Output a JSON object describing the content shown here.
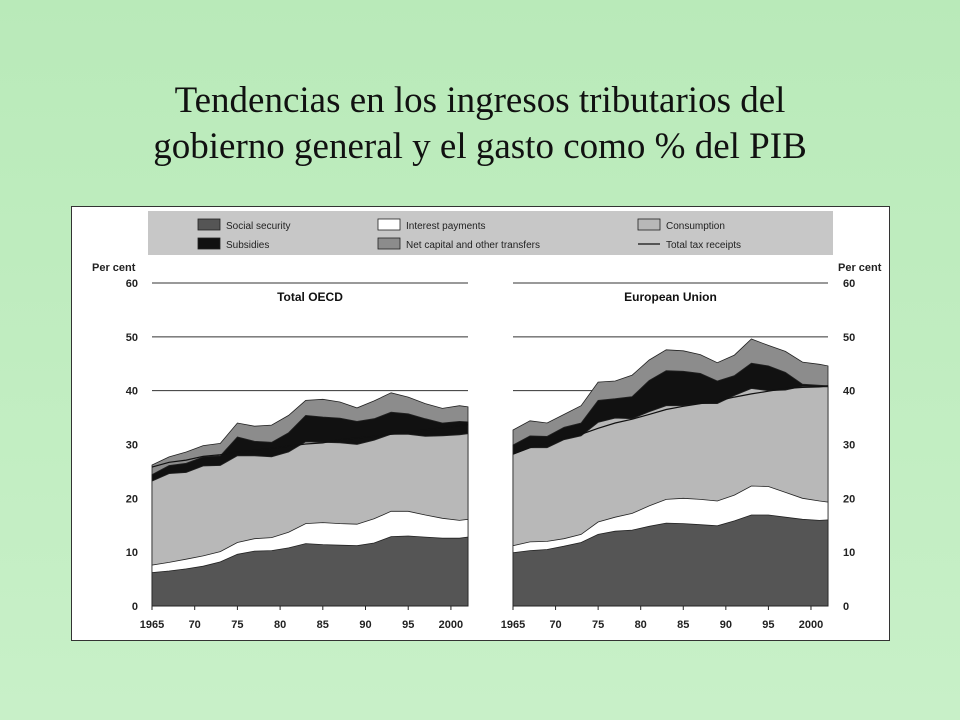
{
  "slide": {
    "title_line1": "Tendencias en los ingresos tributarios del",
    "title_line2": "gobierno general y el gasto como % del PIB"
  },
  "chart_data": {
    "type": "area",
    "stacked": true,
    "unit_label_left": "Per cent",
    "unit_label_right": "Per cent",
    "ylim": [
      0,
      60
    ],
    "yticks": [
      0,
      10,
      20,
      30,
      40,
      50,
      60
    ],
    "xlim": [
      1965,
      2002
    ],
    "xticks": [
      1965,
      1970,
      1975,
      1980,
      1985,
      1990,
      1995,
      2000
    ],
    "xtick_labels": [
      "1965",
      "70",
      "75",
      "80",
      "85",
      "90",
      "95",
      "2000"
    ],
    "grid": "horizontal lines at 10, 40, 50, 60",
    "legend": {
      "placement": "top",
      "items": [
        {
          "name": "Social security",
          "color": "#555555",
          "kind": "area"
        },
        {
          "name": "Interest payments",
          "color": "#ffffff",
          "kind": "area"
        },
        {
          "name": "Consumption",
          "color": "#b8b8b8",
          "kind": "area"
        },
        {
          "name": "Subsidies",
          "color": "#111111",
          "kind": "area"
        },
        {
          "name": "Net capital and other transfers",
          "color": "#8c8c8c",
          "kind": "area"
        },
        {
          "name": "Total tax receipts",
          "color": "#111111",
          "kind": "line"
        }
      ]
    },
    "colors": {
      "social_security": "#555555",
      "interest": "#ffffff",
      "consumption": "#b8b8b8",
      "subsidies": "#111111",
      "net_capital": "#8c8c8c",
      "tax_line": "#111111"
    },
    "panels": [
      {
        "title": "Total OECD",
        "x": [
          1965,
          1967,
          1969,
          1971,
          1973,
          1975,
          1977,
          1979,
          1981,
          1983,
          1985,
          1987,
          1989,
          1991,
          1993,
          1995,
          1997,
          1999,
          2001,
          2002
        ],
        "series": [
          {
            "name": "Social security",
            "top": [
              6.2,
              6.5,
              6.9,
              7.4,
              8.2,
              9.6,
              10.2,
              10.3,
              10.8,
              11.6,
              11.4,
              11.3,
              11.2,
              11.7,
              12.9,
              13.0,
              12.8,
              12.6,
              12.6,
              12.8
            ]
          },
          {
            "name": "Interest payments",
            "top": [
              7.6,
              8.1,
              8.7,
              9.3,
              10.1,
              11.8,
              12.5,
              12.7,
              13.7,
              15.3,
              15.5,
              15.3,
              15.2,
              16.2,
              17.6,
              17.6,
              16.9,
              16.3,
              15.9,
              16.1
            ]
          },
          {
            "name": "Consumption",
            "top": [
              23.2,
              24.6,
              24.8,
              26.0,
              26.1,
              27.9,
              27.9,
              27.7,
              28.6,
              30.5,
              30.4,
              30.3,
              30.0,
              30.8,
              31.9,
              31.9,
              31.5,
              31.6,
              31.8,
              32.0
            ]
          },
          {
            "name": "Subsidies",
            "top": [
              24.4,
              26.1,
              26.5,
              27.7,
              27.9,
              31.4,
              30.6,
              30.4,
              32.2,
              35.4,
              35.1,
              34.9,
              34.3,
              34.8,
              36.0,
              35.7,
              34.8,
              34.0,
              34.3,
              34.2
            ]
          },
          {
            "name": "Net capital and other transfers",
            "top": [
              26.2,
              27.7,
              28.6,
              29.8,
              30.2,
              34.0,
              33.4,
              33.6,
              35.4,
              38.2,
              38.4,
              37.9,
              36.8,
              38.1,
              39.6,
              38.8,
              37.6,
              36.7,
              37.2,
              37.0
            ]
          }
        ],
        "total_tax_receipts": [
          25.8,
          26.7,
          27.1,
          27.8,
          28.1,
          28.6,
          28.9,
          29.3,
          29.7,
          30.1,
          30.3,
          30.9,
          31.2,
          31.5,
          31.9,
          32.3,
          32.7,
          33.1,
          33.5,
          33.7
        ]
      },
      {
        "title": "European Union",
        "x": [
          1965,
          1967,
          1969,
          1971,
          1973,
          1975,
          1977,
          1979,
          1981,
          1983,
          1985,
          1987,
          1989,
          1991,
          1993,
          1995,
          1997,
          1999,
          2001,
          2002
        ],
        "series": [
          {
            "name": "Social security",
            "top": [
              9.9,
              10.3,
              10.5,
              11.1,
              11.8,
              13.3,
              13.9,
              14.1,
              14.8,
              15.4,
              15.3,
              15.1,
              14.9,
              15.8,
              16.9,
              16.9,
              16.5,
              16.1,
              15.9,
              16.0
            ]
          },
          {
            "name": "Interest payments",
            "top": [
              11.2,
              11.9,
              12.0,
              12.5,
              13.3,
              15.6,
              16.5,
              17.2,
              18.6,
              19.8,
              20.0,
              19.8,
              19.5,
              20.6,
              22.3,
              22.2,
              21.1,
              20.0,
              19.5,
              19.3
            ]
          },
          {
            "name": "Consumption",
            "top": [
              28.2,
              29.4,
              29.4,
              30.9,
              31.6,
              34.1,
              34.9,
              34.8,
              36.1,
              37.2,
              37.2,
              37.6,
              37.6,
              39.1,
              40.4,
              40.0,
              40.1,
              40.8,
              40.7,
              40.7
            ]
          },
          {
            "name": "Subsidies",
            "top": [
              29.9,
              31.6,
              31.5,
              33.2,
              34.0,
              38.2,
              38.5,
              38.9,
              41.9,
              43.7,
              43.6,
              43.2,
              41.8,
              42.8,
              45.1,
              44.6,
              43.4,
              41.2,
              41.0,
              40.9
            ]
          },
          {
            "name": "Net capital and other transfers",
            "top": [
              32.7,
              34.4,
              34.0,
              35.6,
              37.2,
              41.6,
              41.8,
              42.9,
              45.7,
              47.6,
              47.4,
              46.7,
              45.2,
              46.6,
              49.6,
              48.4,
              47.3,
              45.3,
              44.9,
              44.6
            ]
          }
        ],
        "total_tax_receipts": [
          28.2,
          29.4,
          30.3,
          31.1,
          31.9,
          33.0,
          34.0,
          34.7,
          35.6,
          36.5,
          37.1,
          37.6,
          38.1,
          38.8,
          39.4,
          39.9,
          40.4,
          40.6,
          40.7,
          40.9
        ]
      }
    ]
  }
}
